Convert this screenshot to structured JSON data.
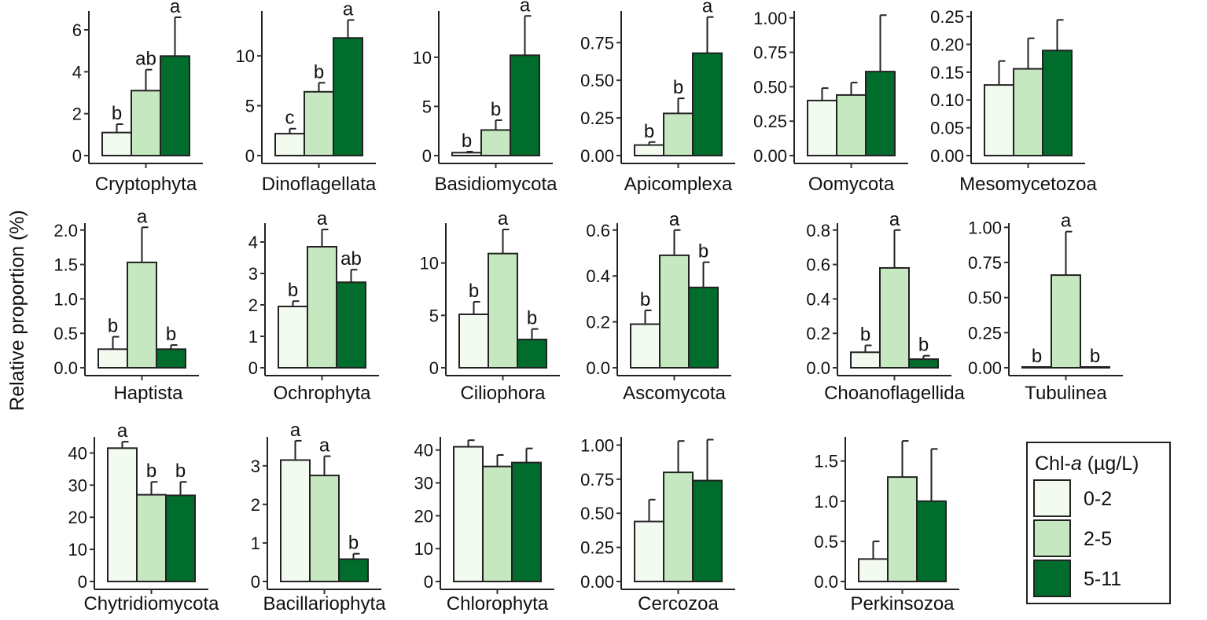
{
  "chart_data": {
    "type": "bar",
    "ylabel": "Relative proportion (%)",
    "legend": {
      "title_prefix": "Chl-",
      "title_italic": "a",
      "title_suffix": " (µg/L)",
      "placement": "bottom-right",
      "entries": [
        {
          "label": "0-2",
          "color": "#f3faf0"
        },
        {
          "label": "2-5",
          "color": "#c6e8c0"
        },
        {
          "label": "5-11",
          "color": "#006d2c"
        }
      ]
    },
    "panels": [
      {
        "name": "Cryptophyta",
        "ylim": [
          0,
          6.9
        ],
        "ticks": [
          0,
          2,
          4,
          6
        ],
        "tick_labels": [
          "0",
          "2",
          "4",
          "6"
        ],
        "values": [
          1.1,
          3.1,
          4.75
        ],
        "errors": [
          1.5,
          4.1,
          6.6
        ],
        "letters": [
          "b",
          "ab",
          "a"
        ]
      },
      {
        "name": "Dinoflagellata",
        "ylim": [
          0,
          14.5
        ],
        "ticks": [
          0,
          5,
          10
        ],
        "tick_labels": [
          "0",
          "5",
          "10"
        ],
        "values": [
          2.2,
          6.4,
          11.8
        ],
        "errors": [
          2.7,
          7.3,
          13.6
        ],
        "letters": [
          "c",
          "b",
          "a"
        ]
      },
      {
        "name": "Basidiomycota",
        "ylim": [
          0,
          14.7
        ],
        "ticks": [
          0,
          5,
          10
        ],
        "tick_labels": [
          "0",
          "5",
          "10"
        ],
        "values": [
          0.3,
          2.6,
          10.2
        ],
        "errors": [
          0.4,
          3.6,
          14.2
        ],
        "letters": [
          "b",
          "b",
          "a"
        ]
      },
      {
        "name": "Apicomplexa",
        "ylim": [
          0,
          0.96
        ],
        "ticks": [
          0,
          0.25,
          0.5,
          0.75
        ],
        "tick_labels": [
          "0.00",
          "0.25",
          "0.50",
          "0.75"
        ],
        "values": [
          0.07,
          0.28,
          0.68
        ],
        "errors": [
          0.09,
          0.38,
          0.92
        ],
        "letters": [
          "b",
          "b",
          "a"
        ]
      },
      {
        "name": "Oomycota",
        "ylim": [
          0,
          1.05
        ],
        "ticks": [
          0,
          0.25,
          0.5,
          0.75,
          1.0
        ],
        "tick_labels": [
          "0.00",
          "0.25",
          "0.50",
          "0.75",
          "1.00"
        ],
        "values": [
          0.4,
          0.44,
          0.61
        ],
        "errors": [
          0.49,
          0.53,
          1.02
        ],
        "letters": [
          "",
          "",
          ""
        ]
      },
      {
        "name": "Mesomycetozoa",
        "ylim": [
          0,
          0.26
        ],
        "ticks": [
          0,
          0.05,
          0.1,
          0.15,
          0.2,
          0.25
        ],
        "tick_labels": [
          "0.00",
          "0.05",
          "0.10",
          "0.15",
          "0.20",
          "0.25"
        ],
        "values": [
          0.127,
          0.156,
          0.189
        ],
        "errors": [
          0.17,
          0.211,
          0.244
        ],
        "letters": [
          "",
          "",
          ""
        ]
      },
      {
        "name": "Haptista",
        "ylim": [
          0,
          2.1
        ],
        "ticks": [
          0,
          0.5,
          1,
          1.5,
          2
        ],
        "tick_labels": [
          "0.0",
          "0.5",
          "1.0",
          "1.5",
          "2.0"
        ],
        "values": [
          0.27,
          1.53,
          0.27
        ],
        "errors": [
          0.45,
          2.04,
          0.33
        ],
        "letters": [
          "b",
          "a",
          "b"
        ]
      },
      {
        "name": "Ochrophyta",
        "ylim": [
          0,
          4.6
        ],
        "ticks": [
          0,
          1,
          2,
          3,
          4
        ],
        "tick_labels": [
          "0",
          "1",
          "2",
          "3",
          "4"
        ],
        "values": [
          1.95,
          3.85,
          2.72
        ],
        "errors": [
          2.12,
          4.4,
          3.12
        ],
        "letters": [
          "b",
          "a",
          "ab"
        ]
      },
      {
        "name": "Ciliophora",
        "ylim": [
          0,
          13.8
        ],
        "ticks": [
          0,
          5,
          10
        ],
        "tick_labels": [
          "0",
          "5",
          "10"
        ],
        "values": [
          5.1,
          10.9,
          2.7
        ],
        "errors": [
          6.3,
          13.2,
          3.7
        ],
        "letters": [
          "b",
          "a",
          "b"
        ]
      },
      {
        "name": "Ascomycota",
        "ylim": [
          0,
          0.63
        ],
        "ticks": [
          0,
          0.2,
          0.4,
          0.6
        ],
        "tick_labels": [
          "0.0",
          "0.2",
          "0.4",
          "0.6"
        ],
        "values": [
          0.19,
          0.49,
          0.35
        ],
        "errors": [
          0.25,
          0.6,
          0.46
        ],
        "letters": [
          "b",
          "a",
          "b"
        ]
      },
      {
        "name": "Choanoflagellida",
        "ylim": [
          0,
          0.84
        ],
        "ticks": [
          0,
          0.2,
          0.4,
          0.6,
          0.8
        ],
        "tick_labels": [
          "0.0",
          "0.2",
          "0.4",
          "0.6",
          "0.8"
        ],
        "values": [
          0.09,
          0.58,
          0.05
        ],
        "errors": [
          0.13,
          0.8,
          0.07
        ],
        "letters": [
          "b",
          "a",
          "b"
        ]
      },
      {
        "name": "Tubulinea",
        "ylim": [
          0,
          1.03
        ],
        "ticks": [
          0,
          0.25,
          0.5,
          0.75,
          1.0
        ],
        "tick_labels": [
          "0.00",
          "0.25",
          "0.50",
          "0.75",
          "1.00"
        ],
        "values": [
          0.005,
          0.66,
          0.005
        ],
        "errors": [
          0.005,
          0.97,
          0.005
        ],
        "letters": [
          "b",
          "a",
          "b"
        ]
      },
      {
        "name": "Chytridiomycota",
        "ylim": [
          0,
          45
        ],
        "ticks": [
          0,
          10,
          20,
          30,
          40
        ],
        "tick_labels": [
          "0",
          "10",
          "20",
          "30",
          "40"
        ],
        "values": [
          41.5,
          27,
          26.8
        ],
        "errors": [
          43.5,
          31,
          31
        ],
        "letters": [
          "a",
          "b",
          "b"
        ]
      },
      {
        "name": "Bacillariophyta",
        "ylim": [
          0,
          3.75
        ],
        "ticks": [
          0,
          1,
          2,
          3
        ],
        "tick_labels": [
          "0",
          "1",
          "2",
          "3"
        ],
        "values": [
          3.15,
          2.75,
          0.58
        ],
        "errors": [
          3.65,
          3.25,
          0.72
        ],
        "letters": [
          "a",
          "a",
          "b"
        ]
      },
      {
        "name": "Chlorophyta",
        "ylim": [
          0,
          44
        ],
        "ticks": [
          0,
          10,
          20,
          30,
          40
        ],
        "tick_labels": [
          "0",
          "10",
          "20",
          "30",
          "40"
        ],
        "values": [
          41,
          35,
          36.2
        ],
        "errors": [
          43,
          38.5,
          40.5
        ],
        "letters": [
          "",
          "",
          ""
        ]
      },
      {
        "name": "Cercozoa",
        "ylim": [
          0,
          1.06
        ],
        "ticks": [
          0,
          0.25,
          0.5,
          0.75,
          1.0
        ],
        "tick_labels": [
          "0.00",
          "0.25",
          "0.50",
          "0.75",
          "1.00"
        ],
        "values": [
          0.44,
          0.8,
          0.74
        ],
        "errors": [
          0.6,
          1.03,
          1.04
        ],
        "letters": [
          "",
          "",
          ""
        ]
      },
      {
        "name": "Perkinsozoa",
        "ylim": [
          0,
          1.8
        ],
        "ticks": [
          0,
          0.5,
          1,
          1.5
        ],
        "tick_labels": [
          "0.0",
          "0.5",
          "1.0",
          "1.5"
        ],
        "values": [
          0.28,
          1.3,
          1.0
        ],
        "errors": [
          0.5,
          1.75,
          1.65
        ],
        "letters": [
          "",
          "",
          ""
        ]
      }
    ]
  }
}
